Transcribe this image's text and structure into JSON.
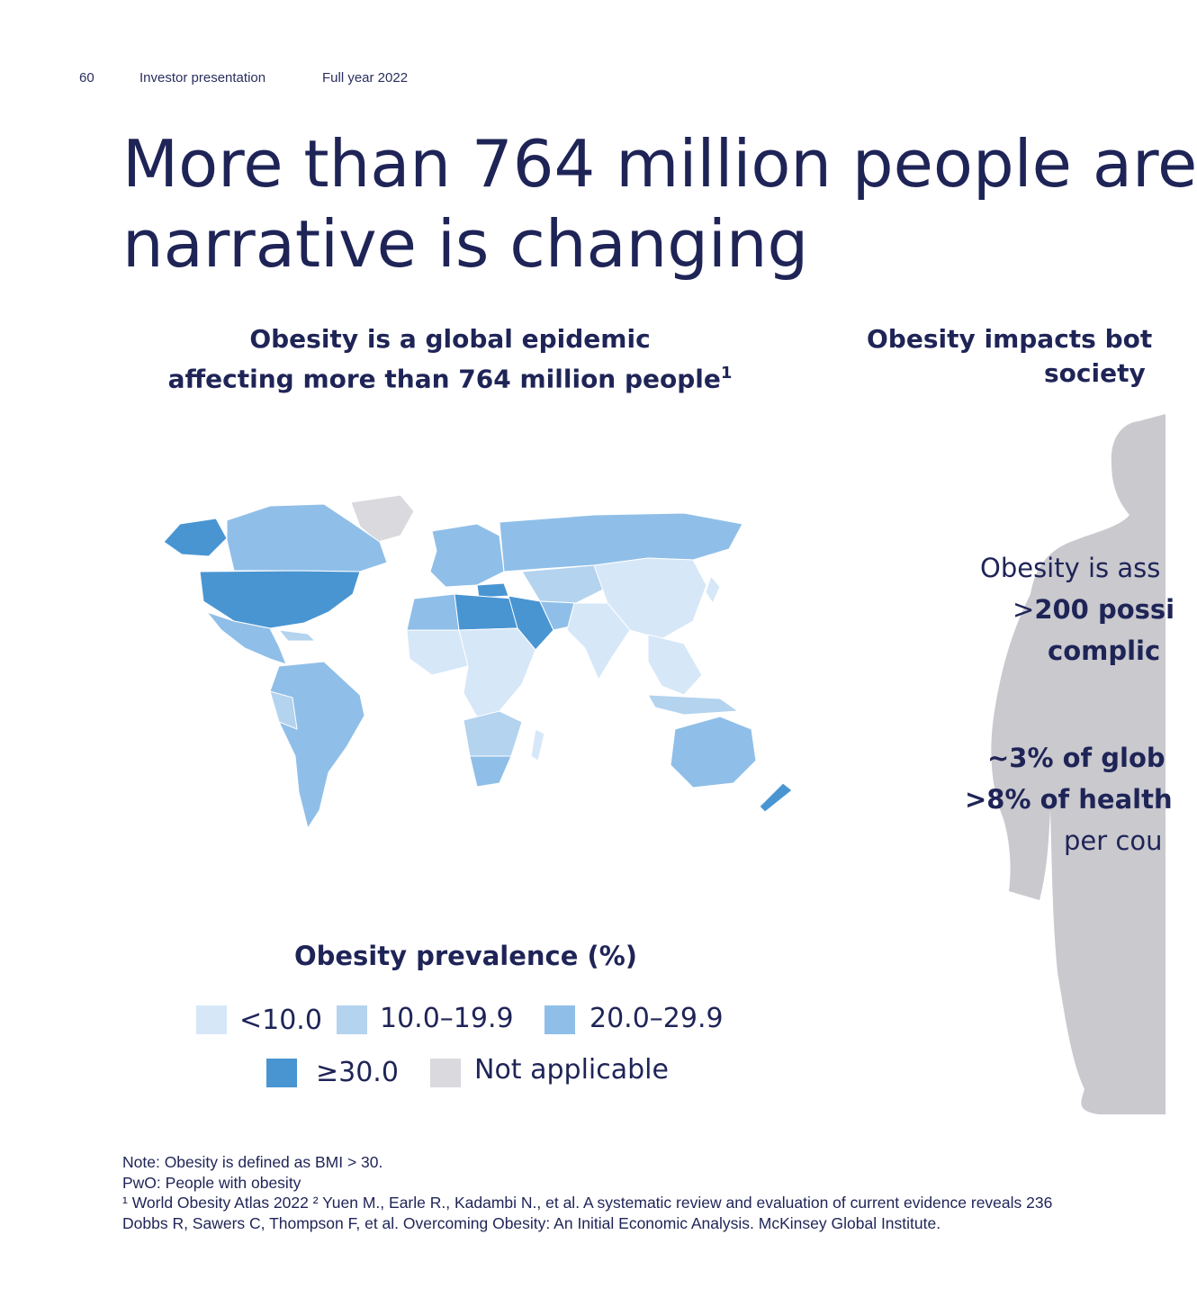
{
  "header": {
    "page_number": "60",
    "doc_title": "Investor presentation",
    "period": "Full year 2022"
  },
  "title": {
    "line1": "More than 764 million people are",
    "line2": "narrative is changing"
  },
  "left_column": {
    "heading_line1": "Obesity is a global epidemic",
    "heading_line2": "affecting more than 764 million people",
    "heading_sup": "1",
    "legend_title": "Obesity prevalence (%)",
    "legend": [
      {
        "label": "<10.0",
        "color": "#d6e7f8"
      },
      {
        "label": "10.0–19.9",
        "color": "#b3d3ef"
      },
      {
        "label": "20.0–29.9",
        "color": "#8fbfe8"
      },
      {
        "label": "≥30.0",
        "color": "#4995d2"
      },
      {
        "label": "Not applicable",
        "color": "#d9d9de"
      }
    ]
  },
  "right_column": {
    "heading_line1": "Obesity impacts bot",
    "heading_line2": "society",
    "fact1_line1": "Obesity is ass",
    "fact1_line2_prefix": ">",
    "fact1_line2_bold": "200 possi",
    "fact1_line3_bold": "complic",
    "fact2_line1_bold": "~3% of glob",
    "fact2_line2_bold": ">8% of health",
    "fact2_line3": "per cou",
    "figure_color": "#c9c9ce"
  },
  "notes": {
    "line1": "Note: Obesity is defined as BMI > 30.",
    "line2": "PwO: People with obesity",
    "line3": "¹ World Obesity Atlas 2022 ² Yuen M., Earle R., Kadambi N., et al. A systematic review and evaluation of current evidence reveals 236",
    "line4": "Dobbs R, Sawers C, Thompson F, et al. Overcoming Obesity: An Initial Economic Analysis. McKinsey Global Institute."
  },
  "colors": {
    "navy": "#1f2457",
    "band_lt10": "#d6e7f8",
    "band_10_20": "#b3d3ef",
    "band_20_30": "#8fbfe8",
    "band_ge30": "#4995d2",
    "band_na": "#d9d9de"
  }
}
